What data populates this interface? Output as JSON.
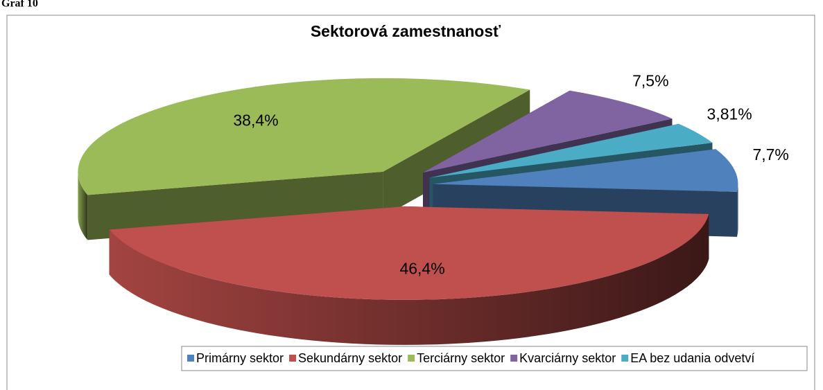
{
  "caption": "Graf 10",
  "chart_data": {
    "type": "pie3d",
    "title": "Sektorová zamestnanosť",
    "categories": [
      "Primárny sektor",
      "Sekundárny sektor",
      "Terciárny sektor",
      "Kvarciárny sektor",
      "EA bez udania odvetví"
    ],
    "values": [
      7.7,
      46.4,
      38.4,
      7.5,
      3.81
    ],
    "value_labels": [
      "7,7%",
      "46,4%",
      "38,4%",
      "7,5%",
      "3,81%"
    ],
    "colors": [
      "#4f81bd",
      "#c0504d",
      "#9bbb59",
      "#8064a2",
      "#4bacc6"
    ],
    "legend": "bottom"
  }
}
